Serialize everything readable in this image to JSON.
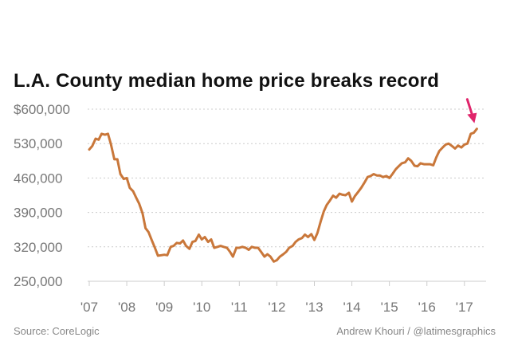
{
  "title": "L.A. County median home price breaks record",
  "source": "Source: CoreLogic",
  "credit": "Andrew Khouri / @latimesgraphics",
  "colors": {
    "line": "#c9773a",
    "grid": "#cccccc",
    "arrow": "#e0256b",
    "axis_text": "#777777"
  },
  "chart_data": {
    "type": "line",
    "title": "L.A. County median home price breaks record",
    "xlabel": "",
    "ylabel": "",
    "ylim": [
      250000,
      600000
    ],
    "xlim": [
      2007.0,
      2017.45
    ],
    "yticks": [
      600000,
      530000,
      460000,
      390000,
      320000,
      250000
    ],
    "ytick_labels": [
      "$600,000",
      "530,000",
      "460,000",
      "390,000",
      "320,000",
      "250,000"
    ],
    "xticks": [
      2007,
      2008,
      2009,
      2010,
      2011,
      2012,
      2013,
      2014,
      2015,
      2016,
      2017
    ],
    "xtick_labels": [
      "'07",
      "'08",
      "'09",
      "'10",
      "'11",
      "'12",
      "'13",
      "'14",
      "'15",
      "'16",
      "'17"
    ],
    "grid": true,
    "annotation": "arrow pointing at latest record value",
    "series": [
      {
        "name": "Median home price",
        "x": [
          2007.0,
          2007.08,
          2007.17,
          2007.25,
          2007.33,
          2007.42,
          2007.5,
          2007.58,
          2007.67,
          2007.75,
          2007.83,
          2007.92,
          2008.0,
          2008.08,
          2008.17,
          2008.25,
          2008.33,
          2008.42,
          2008.5,
          2008.58,
          2008.67,
          2008.75,
          2008.83,
          2008.92,
          2009.0,
          2009.08,
          2009.17,
          2009.25,
          2009.33,
          2009.42,
          2009.5,
          2009.58,
          2009.67,
          2009.75,
          2009.83,
          2009.92,
          2010.0,
          2010.08,
          2010.17,
          2010.25,
          2010.33,
          2010.42,
          2010.5,
          2010.58,
          2010.67,
          2010.75,
          2010.83,
          2010.92,
          2011.0,
          2011.08,
          2011.17,
          2011.25,
          2011.33,
          2011.42,
          2011.5,
          2011.58,
          2011.67,
          2011.75,
          2011.83,
          2011.92,
          2012.0,
          2012.08,
          2012.17,
          2012.25,
          2012.33,
          2012.42,
          2012.5,
          2012.58,
          2012.67,
          2012.75,
          2012.83,
          2012.92,
          2013.0,
          2013.08,
          2013.17,
          2013.25,
          2013.33,
          2013.42,
          2013.5,
          2013.58,
          2013.67,
          2013.75,
          2013.83,
          2013.92,
          2014.0,
          2014.08,
          2014.17,
          2014.25,
          2014.33,
          2014.42,
          2014.5,
          2014.58,
          2014.67,
          2014.75,
          2014.83,
          2014.92,
          2015.0,
          2015.08,
          2015.17,
          2015.25,
          2015.33,
          2015.42,
          2015.5,
          2015.58,
          2015.67,
          2015.75,
          2015.83,
          2015.92,
          2016.0,
          2016.08,
          2016.17,
          2016.25,
          2016.33,
          2016.42,
          2016.5,
          2016.58,
          2016.67,
          2016.75,
          2016.83,
          2016.92,
          2017.0,
          2017.08,
          2017.17,
          2017.25,
          2017.33
        ],
        "values": [
          518000,
          525000,
          540000,
          538000,
          550000,
          548000,
          550000,
          528000,
          498000,
          498000,
          468000,
          458000,
          460000,
          440000,
          433000,
          420000,
          408000,
          388000,
          358000,
          350000,
          333000,
          318000,
          302000,
          303000,
          304000,
          303000,
          320000,
          322000,
          328000,
          327000,
          333000,
          322000,
          316000,
          330000,
          332000,
          345000,
          335000,
          340000,
          330000,
          335000,
          318000,
          320000,
          322000,
          320000,
          318000,
          310000,
          300000,
          318000,
          318000,
          320000,
          318000,
          314000,
          320000,
          318000,
          318000,
          310000,
          300000,
          305000,
          300000,
          290000,
          293000,
          300000,
          305000,
          310000,
          318000,
          322000,
          330000,
          335000,
          338000,
          345000,
          340000,
          346000,
          334000,
          348000,
          372000,
          392000,
          405000,
          415000,
          424000,
          420000,
          428000,
          426000,
          425000,
          430000,
          412000,
          423000,
          432000,
          440000,
          450000,
          462000,
          464000,
          468000,
          465000,
          465000,
          462000,
          464000,
          460000,
          468000,
          478000,
          484000,
          490000,
          492000,
          500000,
          495000,
          485000,
          484000,
          490000,
          488000,
          488000,
          488000,
          486000,
          502000,
          515000,
          522000,
          528000,
          530000,
          525000,
          520000,
          526000,
          522000,
          528000,
          530000,
          550000,
          552000,
          560000
        ]
      }
    ]
  }
}
